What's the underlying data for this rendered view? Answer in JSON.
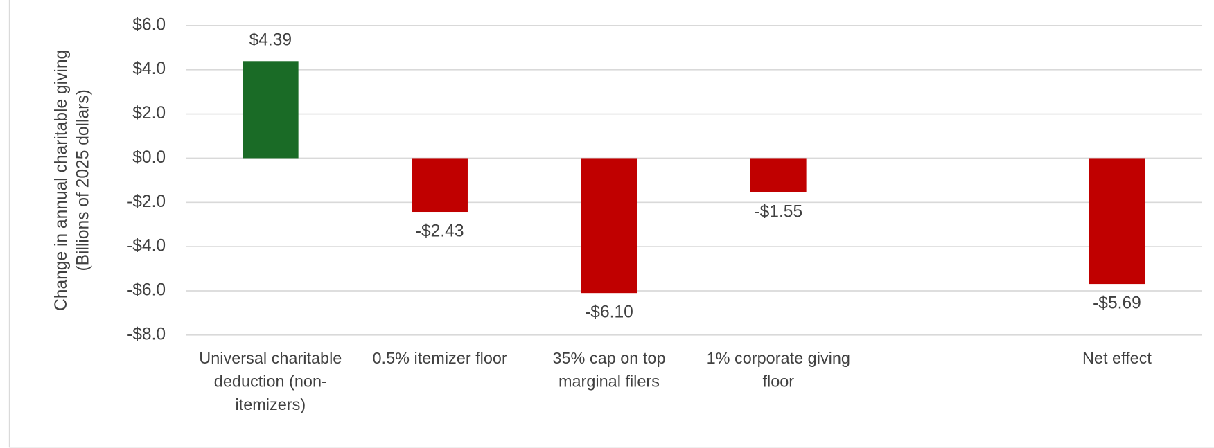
{
  "chart_data": {
    "type": "bar",
    "ylabel": "Change in annual charitable giving (Billions of 2025 dollars)",
    "categories": [
      "Universal charitable deduction (non-itemizers)",
      "0.5% itemizer floor",
      "35% cap on top marginal filers",
      "1% corporate giving floor",
      null,
      "Net effect"
    ],
    "values": [
      4.39,
      -2.43,
      -6.1,
      -1.55,
      null,
      -5.69
    ],
    "value_labels": [
      "$4.39",
      "-$2.43",
      "-$6.10",
      "-$1.55",
      null,
      "-$5.69"
    ],
    "colors": [
      "#1a6b26",
      "#c00000",
      "#c00000",
      "#c00000",
      null,
      "#c00000"
    ],
    "ylim": [
      -8,
      6
    ],
    "yticks": [
      {
        "value": -8,
        "label": "-$8.0"
      },
      {
        "value": -6,
        "label": "-$6.0"
      },
      {
        "value": -4,
        "label": "-$4.0"
      },
      {
        "value": -2,
        "label": "-$2.0"
      },
      {
        "value": 0,
        "label": "$0.0"
      },
      {
        "value": 2,
        "label": "$2.0"
      },
      {
        "value": 4,
        "label": "$4.0"
      },
      {
        "value": 6,
        "label": "$6.0"
      }
    ],
    "grid": true
  }
}
